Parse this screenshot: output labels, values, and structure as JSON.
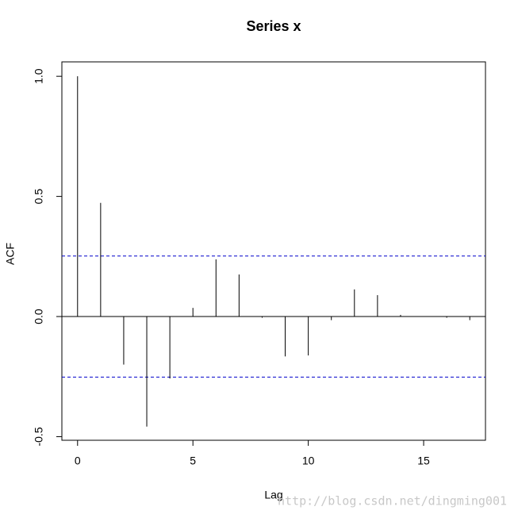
{
  "chart_data": {
    "type": "bar",
    "title": "Series  x",
    "x_label": "Lag",
    "y_label": "ACF",
    "x": [
      0,
      1,
      2,
      3,
      4,
      5,
      6,
      7,
      8,
      9,
      10,
      11,
      12,
      13,
      14,
      15,
      16,
      17
    ],
    "values": [
      1.0,
      0.473,
      -0.2,
      -0.458,
      -0.258,
      0.036,
      0.238,
      0.175,
      -0.005,
      -0.166,
      -0.162,
      -0.015,
      0.113,
      0.089,
      0.007,
      0.0,
      -0.005,
      -0.015
    ],
    "color": "#000000",
    "conf_lines": [
      0.252,
      -0.252
    ],
    "conf_color": "#0000cc",
    "xlim": [
      -0.68,
      17.68
    ],
    "ylim": [
      -0.515,
      1.06
    ],
    "xticks": [
      0,
      5,
      10,
      15
    ],
    "yticks": [
      {
        "value": -0.5,
        "label": "-0.5"
      },
      {
        "value": 0,
        "label": "0.0"
      },
      {
        "value": 0.5,
        "label": "0.5"
      },
      {
        "value": 1,
        "label": "1.0"
      }
    ],
    "watermark": "http://blog.csdn.net/dingming001"
  }
}
